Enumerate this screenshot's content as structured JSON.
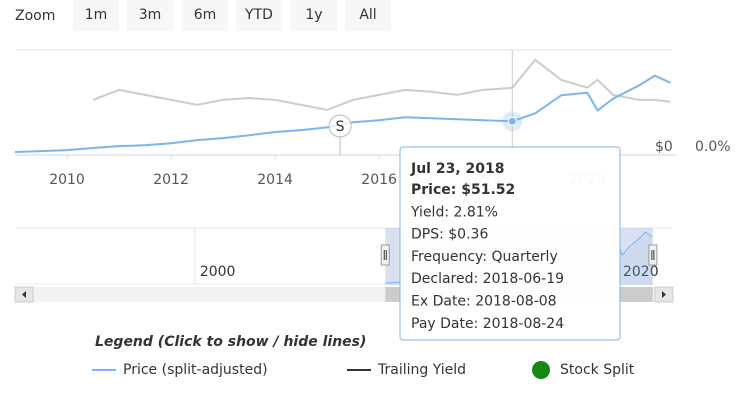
{
  "zoom": {
    "label": "Zoom",
    "buttons": [
      "1m",
      "3m",
      "6m",
      "YTD",
      "1y",
      "All"
    ]
  },
  "chart_data": {
    "type": "line",
    "x": [
      2009,
      2009.5,
      2010,
      2010.5,
      2011,
      2011.5,
      2012,
      2012.5,
      2013,
      2013.5,
      2014,
      2014.5,
      2015,
      2015.5,
      2016,
      2016.5,
      2017,
      2017.5,
      2018,
      2018.56,
      2019,
      2019.5,
      2020,
      2020.2,
      2020.5,
      2021,
      2021.3,
      2021.6
    ],
    "xlim": [
      2009,
      2021.65
    ],
    "xticks": [
      2010,
      2012,
      2014,
      2016,
      2018,
      2020
    ],
    "ylim": [
      0,
      160
    ],
    "yticks": [
      {
        "value": 0,
        "label": "$0"
      }
    ],
    "y2lim": [
      0,
      4.4
    ],
    "y2ticks": [
      {
        "value": 0,
        "label": "0.0%"
      }
    ],
    "series": [
      {
        "name": "Price (split-adjusted)",
        "color": "#7cb5ec",
        "legend_color": "#7cb5ec",
        "values": [
          4.5,
          6,
          7.5,
          10.6,
          13.6,
          15,
          18,
          22.7,
          25.8,
          30,
          35,
          38,
          42,
          50,
          53,
          57.6,
          56,
          54.5,
          53,
          51.52,
          63.6,
          91,
          95,
          68,
          86,
          106,
          121,
          110
        ]
      },
      {
        "name": "Trailing Yield",
        "color": "#cccccc",
        "legend_color": "#333333",
        "axis": "y2",
        "values": [
          null,
          null,
          null,
          2.31,
          2.73,
          2.52,
          2.31,
          2.1,
          2.31,
          2.39,
          2.31,
          2.1,
          1.89,
          2.31,
          2.52,
          2.73,
          2.65,
          2.52,
          2.73,
          2.81,
          3.99,
          3.15,
          2.82,
          3.15,
          2.52,
          2.31,
          2.31,
          2.23
        ]
      }
    ],
    "splits": {
      "name": "Stock Split",
      "color": "#138813",
      "label": "S",
      "x": [
        2015.25
      ]
    },
    "navigator": {
      "xlim": [
        1991.5,
        2022.6
      ],
      "xticks": [
        2000,
        2020
      ],
      "ylim": [
        0,
        130
      ]
    },
    "legend_title": "Legend (Click to show / hide lines)",
    "tooltip": {
      "x": 2018.56,
      "title": "Jul 23, 2018",
      "lines": [
        "Price: $51.52",
        "Yield: 2.81%",
        "DPS: $0.36",
        "Frequency: Quarterly",
        "Declared: 2018-06-19",
        "Ex Date: 2018-08-08",
        "Pay Date: 2018-08-24"
      ]
    }
  }
}
